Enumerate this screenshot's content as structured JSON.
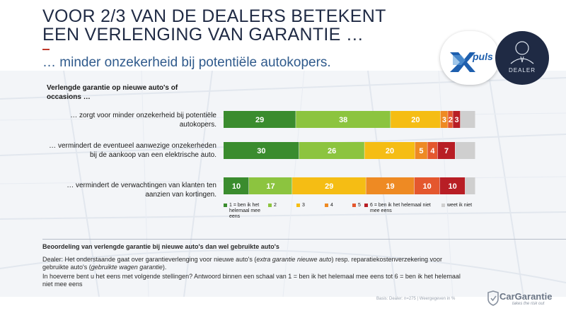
{
  "header": {
    "title_line1": "VOOR 2/3 VAN DE DEALERS BETEKENT",
    "title_line2": "EEN VERLENGING VAN GARANTIE …",
    "subtitle": "… minder onzekerheid bij potentiële autokopers."
  },
  "logos": {
    "puls_text": "puls",
    "dealer_text": "DEALER"
  },
  "chart_data": {
    "type": "bar",
    "orientation": "horizontal",
    "stacked": true,
    "normalized": true,
    "section_title": "Verlengde garantie op nieuwe auto's of occasions …",
    "categories": [
      "… zorgt voor minder onzekerheid bij potentiële autokopers.",
      "… vermindert de eventueel aanwezige onzekerheden bij de aankoop van een elektrische auto.",
      "… vermindert de verwachtingen van klanten ten aanzien van kortingen."
    ],
    "series": [
      {
        "name": "1 = ben ik het helemaal mee eens",
        "color": "#3a8c2e",
        "values": [
          29,
          30,
          10
        ]
      },
      {
        "name": "2",
        "color": "#8cc43f",
        "values": [
          38,
          26,
          17
        ]
      },
      {
        "name": "3",
        "color": "#f5bd14",
        "values": [
          20,
          20,
          29
        ]
      },
      {
        "name": "4",
        "color": "#ee8a23",
        "values": [
          3,
          5,
          19
        ]
      },
      {
        "name": "5",
        "color": "#e4572e",
        "values": [
          2,
          4,
          10
        ]
      },
      {
        "name": "6 = ben ik het helemaal niet mee eens",
        "color": "#b81e25",
        "values": [
          3,
          7,
          10
        ]
      },
      {
        "name": "weet ik niet",
        "color": "#cfcfcf",
        "values": [
          6,
          8,
          4
        ]
      }
    ],
    "data_labels": [
      [
        "29",
        "38",
        "20",
        "3",
        "2",
        "3",
        ""
      ],
      [
        "30",
        "26",
        "20",
        "5",
        "4",
        "7",
        ""
      ],
      [
        "10",
        "17",
        "29",
        "19",
        "10",
        "10",
        ""
      ]
    ],
    "xlim": [
      0,
      100
    ],
    "legend_position": "bottom"
  },
  "legend": {
    "items": [
      {
        "label": "1 = ben ik het helemaal mee eens",
        "color": "#3a8c2e"
      },
      {
        "label": "2",
        "color": "#8cc43f"
      },
      {
        "label": "3",
        "color": "#f5bd14"
      },
      {
        "label": "4",
        "color": "#ee8a23"
      },
      {
        "label": "5",
        "color": "#e4572e"
      },
      {
        "label": "6 = ben ik het helemaal niet mee eens",
        "color": "#b81e25"
      },
      {
        "label": "weet ik niet",
        "color": "#cfcfcf"
      }
    ]
  },
  "notes": {
    "heading": "Beoordeling van verlengde garantie bij nieuwe auto's dan wel gebruikte auto's",
    "p1_a": "Dealer: Het onderstaande gaat over garantieverlenging voor nieuwe auto's (",
    "p1_i1": "extra garantie nieuwe auto",
    "p1_b": ") resp. reparatiekostenverzekering voor gebruikte auto's (",
    "p1_i2": "gebruikte wagen garantie",
    "p1_c": ").",
    "p2": "In hoeverre bent u het eens met volgende stellingen? Antwoord binnen een schaal van 1 = ben ik het helemaal mee eens tot 6 = ben ik het helemaal niet mee eens"
  },
  "footer": {
    "basis": "Basis: Dealer: n=275 | Weergegeven in %",
    "brand_name": "CarGarantie",
    "brand_tag": "takes the risk out"
  }
}
